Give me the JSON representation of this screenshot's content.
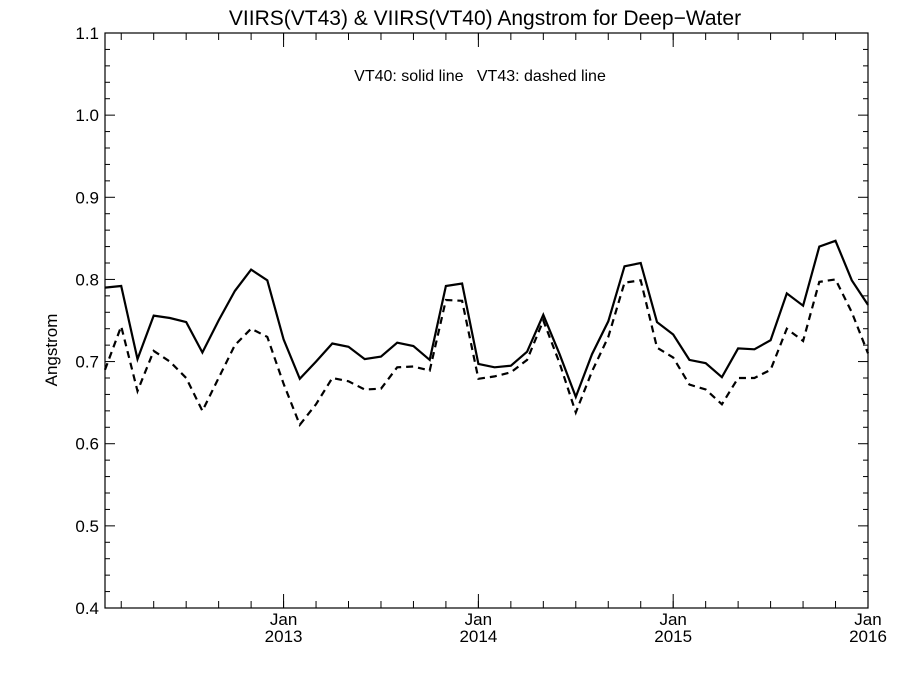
{
  "chart_data": {
    "type": "line",
    "title": "VIIRS(VT43) & VIIRS(VT40)  Angstrom for Deep−Water",
    "annotation": "VT40: solid line   VT43: dashed line",
    "xlabel": "",
    "ylabel": "Angstrom",
    "xlim": [
      "2012-02",
      "2016-01"
    ],
    "ylim": [
      0.4,
      1.1
    ],
    "yticks": [
      "0.4",
      "0.5",
      "0.6",
      "0.7",
      "0.8",
      "0.9",
      "1.0",
      "1.1"
    ],
    "xticks": [
      {
        "month": "Jan",
        "year": "2013",
        "date": "2013-01"
      },
      {
        "month": "Jan",
        "year": "2014",
        "date": "2014-01"
      },
      {
        "month": "Jan",
        "year": "2015",
        "date": "2015-01"
      },
      {
        "month": "Jan",
        "year": "2016",
        "date": "2016-01"
      }
    ],
    "x": [
      "2012-02",
      "2012-03",
      "2012-04",
      "2012-05",
      "2012-06",
      "2012-07",
      "2012-08",
      "2012-09",
      "2012-10",
      "2012-11",
      "2012-12",
      "2013-01",
      "2013-02",
      "2013-03",
      "2013-04",
      "2013-05",
      "2013-06",
      "2013-07",
      "2013-08",
      "2013-09",
      "2013-10",
      "2013-11",
      "2013-12",
      "2014-01",
      "2014-02",
      "2014-03",
      "2014-04",
      "2014-05",
      "2014-06",
      "2014-07",
      "2014-08",
      "2014-09",
      "2014-10",
      "2014-11",
      "2014-12",
      "2015-01",
      "2015-02",
      "2015-03",
      "2015-04",
      "2015-05",
      "2015-06",
      "2015-07",
      "2015-08",
      "2015-09",
      "2015-10",
      "2015-11",
      "2015-12",
      "2016-01"
    ],
    "series": [
      {
        "name": "VT40",
        "style": "solid",
        "values": [
          0.79,
          0.792,
          0.703,
          0.756,
          0.753,
          0.748,
          0.711,
          0.75,
          0.786,
          0.812,
          0.799,
          0.727,
          0.679,
          0.7,
          0.722,
          0.718,
          0.703,
          0.706,
          0.723,
          0.719,
          0.702,
          0.792,
          0.795,
          0.697,
          0.693,
          0.695,
          0.712,
          0.757,
          0.709,
          0.657,
          0.709,
          0.749,
          0.816,
          0.82,
          0.748,
          0.733,
          0.702,
          0.698,
          0.681,
          0.716,
          0.715,
          0.726,
          0.783,
          0.768,
          0.84,
          0.847,
          0.799,
          0.769
        ]
      },
      {
        "name": "VT43",
        "style": "dashed",
        "values": [
          0.69,
          0.743,
          0.664,
          0.713,
          0.7,
          0.68,
          0.64,
          0.68,
          0.72,
          0.74,
          0.73,
          0.673,
          0.623,
          0.648,
          0.68,
          0.676,
          0.666,
          0.667,
          0.693,
          0.694,
          0.689,
          0.775,
          0.774,
          0.679,
          0.682,
          0.687,
          0.702,
          0.75,
          0.698,
          0.638,
          0.688,
          0.73,
          0.796,
          0.799,
          0.717,
          0.705,
          0.672,
          0.666,
          0.648,
          0.68,
          0.68,
          0.69,
          0.74,
          0.725,
          0.797,
          0.8,
          0.76,
          0.71
        ]
      }
    ],
    "grid": false,
    "legend": "none"
  }
}
